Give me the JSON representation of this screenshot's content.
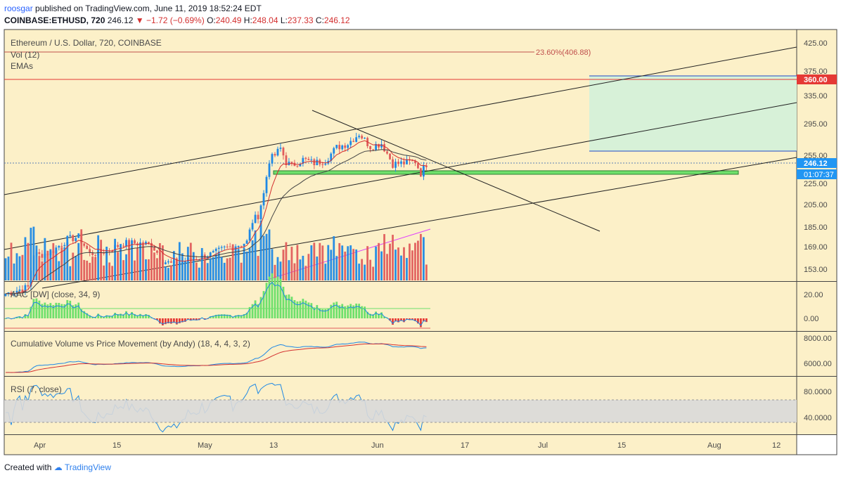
{
  "header": {
    "user": "roosgar",
    "published": "published on TradingView.com, June 11, 2019 18:52:24 EDT",
    "symbol": "COINBASE:ETHUSD, 720",
    "last": "246.12",
    "change": "−1.72 (−0.69%)",
    "o_label": "O:",
    "o": "240.49",
    "h_label": "H:",
    "h": "248.04",
    "l_label": "L:",
    "l": "237.33",
    "c_label": "C:",
    "c": "246.12"
  },
  "panes": {
    "main": {
      "title": "Ethereum / U.S. Dollar, 720, COINBASE",
      "vol": "Vol (12)",
      "emas": "EMAs",
      "fib": "23.60%(406.88)"
    },
    "aac": {
      "title": "AAC [DW] (close, 34, 9)"
    },
    "cvpm": {
      "title": "Cumulative Volume vs Price Movement (by Andy) (18, 4, 4, 3, 2)"
    },
    "rsi": {
      "title": "RSI (7, close)"
    }
  },
  "price_axis": {
    "ticks": [
      "425.00",
      "375.00",
      "335.00",
      "295.00",
      "255.00",
      "225.00",
      "205.00",
      "185.00",
      "169.00",
      "153.00"
    ],
    "badge_target": "360.00",
    "badge_last": "246.12",
    "badge_timer": "01:07:37"
  },
  "aac_axis": [
    "20.00",
    "0.00"
  ],
  "cvpm_axis": [
    "8000.00",
    "6000.00"
  ],
  "rsi_axis": [
    "80.0000",
    "40.0000"
  ],
  "time_axis": [
    "Apr",
    "15",
    "May",
    "13",
    "Jun",
    "17",
    "Jul",
    "15",
    "Aug",
    "12"
  ],
  "footer": {
    "created": "Created with",
    "brand": "TradingView"
  },
  "colors": {
    "bg": "#fcf0c8",
    "up": "#1e88e5",
    "down": "#e05c5c",
    "ema_fast": "#d32f2f",
    "ema_slow": "#444444",
    "target_zone": "#d7f1d8",
    "support": "#6ee06b",
    "rsi_band": "#d9d9d9",
    "magenta": "#e040fb"
  },
  "chart_data": {
    "type": "candlestick",
    "symbol": "COINBASE:ETHUSD",
    "interval": "720",
    "x_range": [
      "2019-03-28",
      "2019-08-16"
    ],
    "y_scale": "log",
    "price_ticks": [
      425,
      375,
      335,
      295,
      255,
      225,
      205,
      185,
      169,
      153
    ],
    "close_series": [
      [
        "2019-03-28",
        137
      ],
      [
        "2019-04-01",
        141
      ],
      [
        "2019-04-02",
        164
      ],
      [
        "2019-04-03",
        163
      ],
      [
        "2019-04-05",
        165
      ],
      [
        "2019-04-08",
        175
      ],
      [
        "2019-04-10",
        177
      ],
      [
        "2019-04-12",
        164
      ],
      [
        "2019-04-15",
        166
      ],
      [
        "2019-04-18",
        172
      ],
      [
        "2019-04-21",
        172
      ],
      [
        "2019-04-23",
        171
      ],
      [
        "2019-04-25",
        159
      ],
      [
        "2019-04-27",
        156
      ],
      [
        "2019-04-30",
        160
      ],
      [
        "2019-05-02",
        162
      ],
      [
        "2019-05-04",
        164
      ],
      [
        "2019-05-06",
        168
      ],
      [
        "2019-05-08",
        170
      ],
      [
        "2019-05-10",
        173
      ],
      [
        "2019-05-11",
        190
      ],
      [
        "2019-05-12",
        195
      ],
      [
        "2019-05-13",
        215
      ],
      [
        "2019-05-14",
        250
      ],
      [
        "2019-05-15",
        256
      ],
      [
        "2019-05-16",
        264
      ],
      [
        "2019-05-17",
        248
      ],
      [
        "2019-05-18",
        244
      ],
      [
        "2019-05-20",
        251
      ],
      [
        "2019-05-22",
        247
      ],
      [
        "2019-05-24",
        250
      ],
      [
        "2019-05-26",
        265
      ],
      [
        "2019-05-28",
        270
      ],
      [
        "2019-05-30",
        282
      ],
      [
        "2019-06-01",
        266
      ],
      [
        "2019-06-03",
        270
      ],
      [
        "2019-06-05",
        246
      ],
      [
        "2019-06-07",
        247
      ],
      [
        "2019-06-09",
        249
      ],
      [
        "2019-06-10",
        236
      ],
      [
        "2019-06-11",
        246.12
      ]
    ],
    "lines": {
      "target": 360,
      "fib_23_6": 406.88,
      "support": 236,
      "target_zone": {
        "from": "2019-06-29",
        "to": "2019-08-20",
        "low": 258,
        "high": 366
      }
    },
    "indicators": [
      {
        "name": "AAC [DW] (close, 34, 9)",
        "range": [
          -8,
          28
        ]
      },
      {
        "name": "Cumulative Volume vs Price Movement (by Andy) (18, 4, 4, 3, 2)",
        "range": [
          5000,
          8500
        ]
      },
      {
        "name": "RSI (7, close)",
        "range": [
          20,
          100
        ],
        "bands": [
          70,
          30
        ]
      }
    ]
  }
}
